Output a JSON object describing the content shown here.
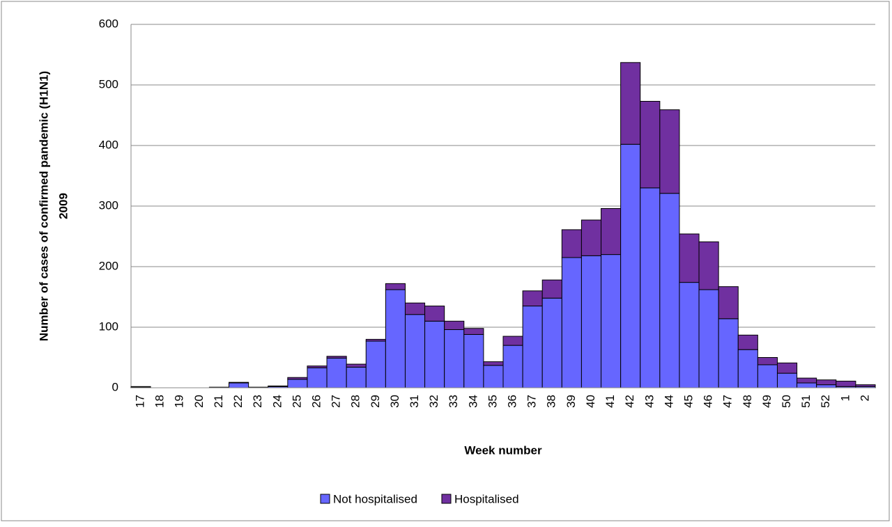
{
  "chart_data": {
    "type": "stacked_bar",
    "xlabel": "Week number",
    "ylabel": [
      "Number of cases of confirmed pandemic (H1N1)",
      "2009"
    ],
    "categories": [
      "17",
      "18",
      "19",
      "20",
      "21",
      "22",
      "23",
      "24",
      "25",
      "26",
      "27",
      "28",
      "29",
      "30",
      "31",
      "32",
      "33",
      "34",
      "35",
      "36",
      "37",
      "38",
      "39",
      "40",
      "41",
      "42",
      "43",
      "44",
      "45",
      "46",
      "47",
      "48",
      "49",
      "50",
      "51",
      "52",
      "1",
      "2"
    ],
    "series": [
      {
        "name": "Not hospitalised",
        "color": "#6666ff",
        "values": [
          1,
          0,
          0,
          0,
          1,
          8,
          1,
          2,
          14,
          33,
          49,
          34,
          77,
          162,
          121,
          110,
          96,
          88,
          37,
          70,
          135,
          148,
          215,
          218,
          220,
          402,
          330,
          321,
          174,
          162,
          114,
          63,
          38,
          24,
          8,
          5,
          2,
          2
        ]
      },
      {
        "name": "Hospitalised",
        "color": "#7030a0",
        "values": [
          1,
          0,
          0,
          0,
          0,
          1,
          0,
          1,
          3,
          3,
          3,
          5,
          3,
          10,
          19,
          25,
          14,
          10,
          6,
          15,
          25,
          30,
          46,
          59,
          76,
          135,
          143,
          138,
          80,
          79,
          53,
          24,
          12,
          17,
          8,
          8,
          9,
          3
        ]
      }
    ],
    "ylim": [
      0,
      600
    ],
    "yticks": [
      0,
      100,
      200,
      300,
      400,
      500,
      600
    ],
    "grid": true,
    "legend": "bottom"
  }
}
